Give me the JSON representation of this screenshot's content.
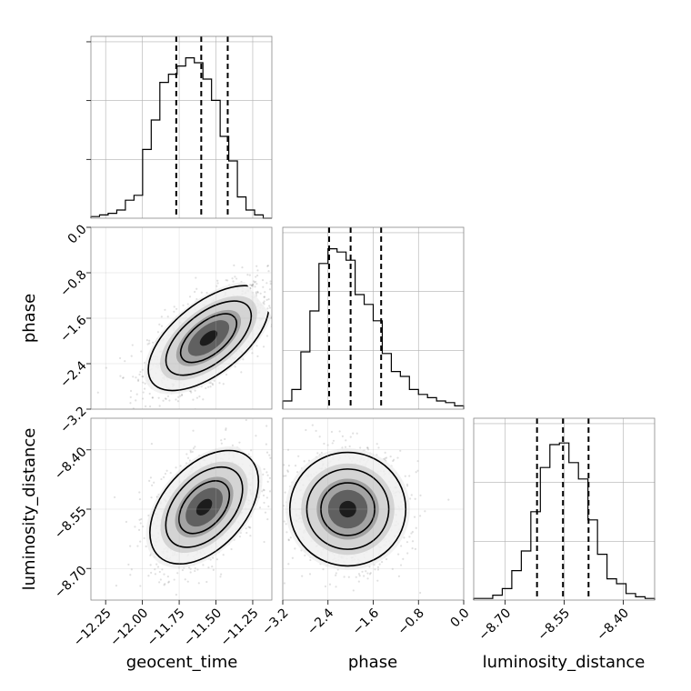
{
  "chart_data": {
    "type": "corner",
    "parameters": [
      "geocent_time",
      "phase",
      "luminosity_distance"
    ],
    "ranges": {
      "geocent_time": [
        -12.35,
        -11.12
      ],
      "phase": [
        -3.2,
        0.0
      ],
      "luminosity_distance": [
        -8.78,
        -8.32
      ]
    },
    "ticks": {
      "geocent_time": {
        "values": [
          -12.25,
          -12.0,
          -11.75,
          -11.5,
          -11.25
        ],
        "labels": [
          "−12.25",
          "−12.00",
          "−11.75",
          "−11.50",
          "−11.25"
        ]
      },
      "phase": {
        "values": [
          -3.2,
          -2.4,
          -1.6,
          -0.8,
          0.0
        ],
        "labels": [
          "−3.2",
          "−2.4",
          "−1.6",
          "−0.8",
          "0.0"
        ]
      },
      "luminosity_distance": {
        "values": [
          -8.7,
          -8.55,
          -8.4
        ],
        "labels": [
          "−8.70",
          "−8.55",
          "−8.40"
        ]
      }
    },
    "quantiles": {
      "geocent_time": [
        -11.77,
        -11.6,
        -11.42
      ],
      "phase": [
        -2.38,
        -2.0,
        -1.46
      ],
      "luminosity_distance": [
        -8.619,
        -8.553,
        -8.488
      ]
    },
    "histograms": {
      "geocent_time": [
        0.01,
        0.02,
        0.03,
        0.05,
        0.11,
        0.14,
        0.42,
        0.6,
        0.83,
        0.88,
        0.93,
        0.98,
        0.95,
        0.85,
        0.72,
        0.5,
        0.35,
        0.13,
        0.05,
        0.02,
        0.0
      ],
      "phase": [
        0.05,
        0.12,
        0.35,
        0.6,
        0.89,
        0.98,
        0.96,
        0.91,
        0.7,
        0.64,
        0.54,
        0.34,
        0.23,
        0.2,
        0.12,
        0.09,
        0.07,
        0.05,
        0.04,
        0.02
      ],
      "luminosity_distance": [
        0.01,
        0.01,
        0.03,
        0.07,
        0.18,
        0.3,
        0.54,
        0.81,
        0.95,
        0.96,
        0.84,
        0.74,
        0.49,
        0.28,
        0.13,
        0.1,
        0.04,
        0.02,
        0.01
      ]
    },
    "correlations": {
      "phase_vs_geocent_time": {
        "mean": [
          -11.55,
          -1.95
        ],
        "sd": [
          0.2,
          0.45
        ],
        "rho": 0.6
      },
      "luminosity_distance_vs_geocent_time": {
        "mean": [
          -11.58,
          -8.545
        ],
        "sd": [
          0.18,
          0.07
        ],
        "rho": 0.45
      },
      "luminosity_distance_vs_phase": {
        "mean": [
          -2.05,
          -8.55
        ],
        "sd": [
          0.5,
          0.07
        ],
        "rho": 0.0
      }
    },
    "contour_levels": [
      0.12,
      0.39,
      0.68,
      0.86
    ],
    "grid": true,
    "xlabels": [
      "geocent_time",
      "phase",
      "luminosity_distance"
    ],
    "ylabels": [
      "",
      "phase",
      "luminosity_distance"
    ],
    "colors": {
      "line": "#000000",
      "grid": "#b0b0b0",
      "points": "#000000"
    }
  }
}
